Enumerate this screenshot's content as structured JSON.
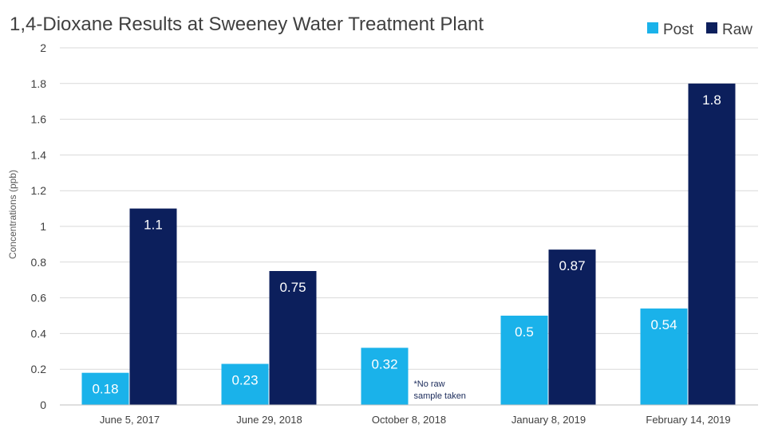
{
  "chart_data": {
    "type": "bar",
    "title": "1,4-Dioxane Results at Sweeney Water Treatment Plant",
    "ylabel": "Concentrations (ppb)",
    "xlabel": "",
    "ylim": [
      0,
      2
    ],
    "yticks": [
      "0",
      "0.2",
      "0.4",
      "0.6",
      "0.8",
      "1",
      "1.2",
      "1.4",
      "1.6",
      "1.8",
      "2"
    ],
    "grid": true,
    "legend_position": "top-right",
    "categories": [
      "June 5, 2017",
      "June 29, 2018",
      "October 8, 2018",
      "January 8, 2019",
      "February 14, 2019"
    ],
    "series": [
      {
        "name": "Post",
        "color": "#1ab2ea",
        "values": [
          0.18,
          0.23,
          0.32,
          0.5,
          0.54
        ],
        "labels": [
          "0.18",
          "0.23",
          "0.32",
          "0.5",
          "0.54"
        ]
      },
      {
        "name": "Raw",
        "color": "#0c1f5c",
        "values": [
          1.1,
          0.75,
          null,
          0.87,
          1.8
        ],
        "labels": [
          "1.1",
          "0.75",
          "",
          "0.87",
          "1.8"
        ]
      }
    ],
    "annotations": [
      {
        "category": "October 8, 2018",
        "series": "Raw",
        "lines": [
          "*No raw",
          "sample taken"
        ]
      }
    ]
  }
}
